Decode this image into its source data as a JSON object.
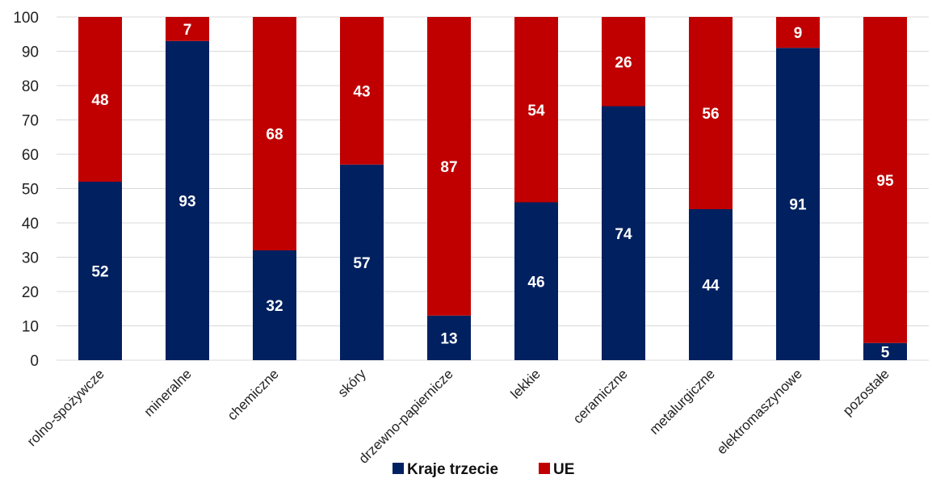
{
  "chart_data": {
    "type": "bar",
    "stacked": true,
    "categories": [
      "rolno-spożywcze",
      "mineralne",
      "chemiczne",
      "skóry",
      "drzewno-papiernicze",
      "lekkie",
      "ceramiczne",
      "metalurgiczne",
      "elektromaszynowe",
      "pozostałe"
    ],
    "series": [
      {
        "name": "Kraje trzecie",
        "color": "#002060",
        "values": [
          52,
          93,
          32,
          57,
          13,
          46,
          74,
          44,
          91,
          5
        ]
      },
      {
        "name": "UE",
        "color": "#C00000",
        "values": [
          48,
          7,
          68,
          43,
          87,
          54,
          26,
          56,
          9,
          95
        ]
      }
    ],
    "ylim": [
      0,
      100
    ],
    "yticks": [
      0,
      10,
      20,
      30,
      40,
      50,
      60,
      70,
      80,
      90,
      100
    ],
    "grid": true,
    "legend_position": "bottom",
    "title": "",
    "xlabel": "",
    "ylabel": ""
  }
}
